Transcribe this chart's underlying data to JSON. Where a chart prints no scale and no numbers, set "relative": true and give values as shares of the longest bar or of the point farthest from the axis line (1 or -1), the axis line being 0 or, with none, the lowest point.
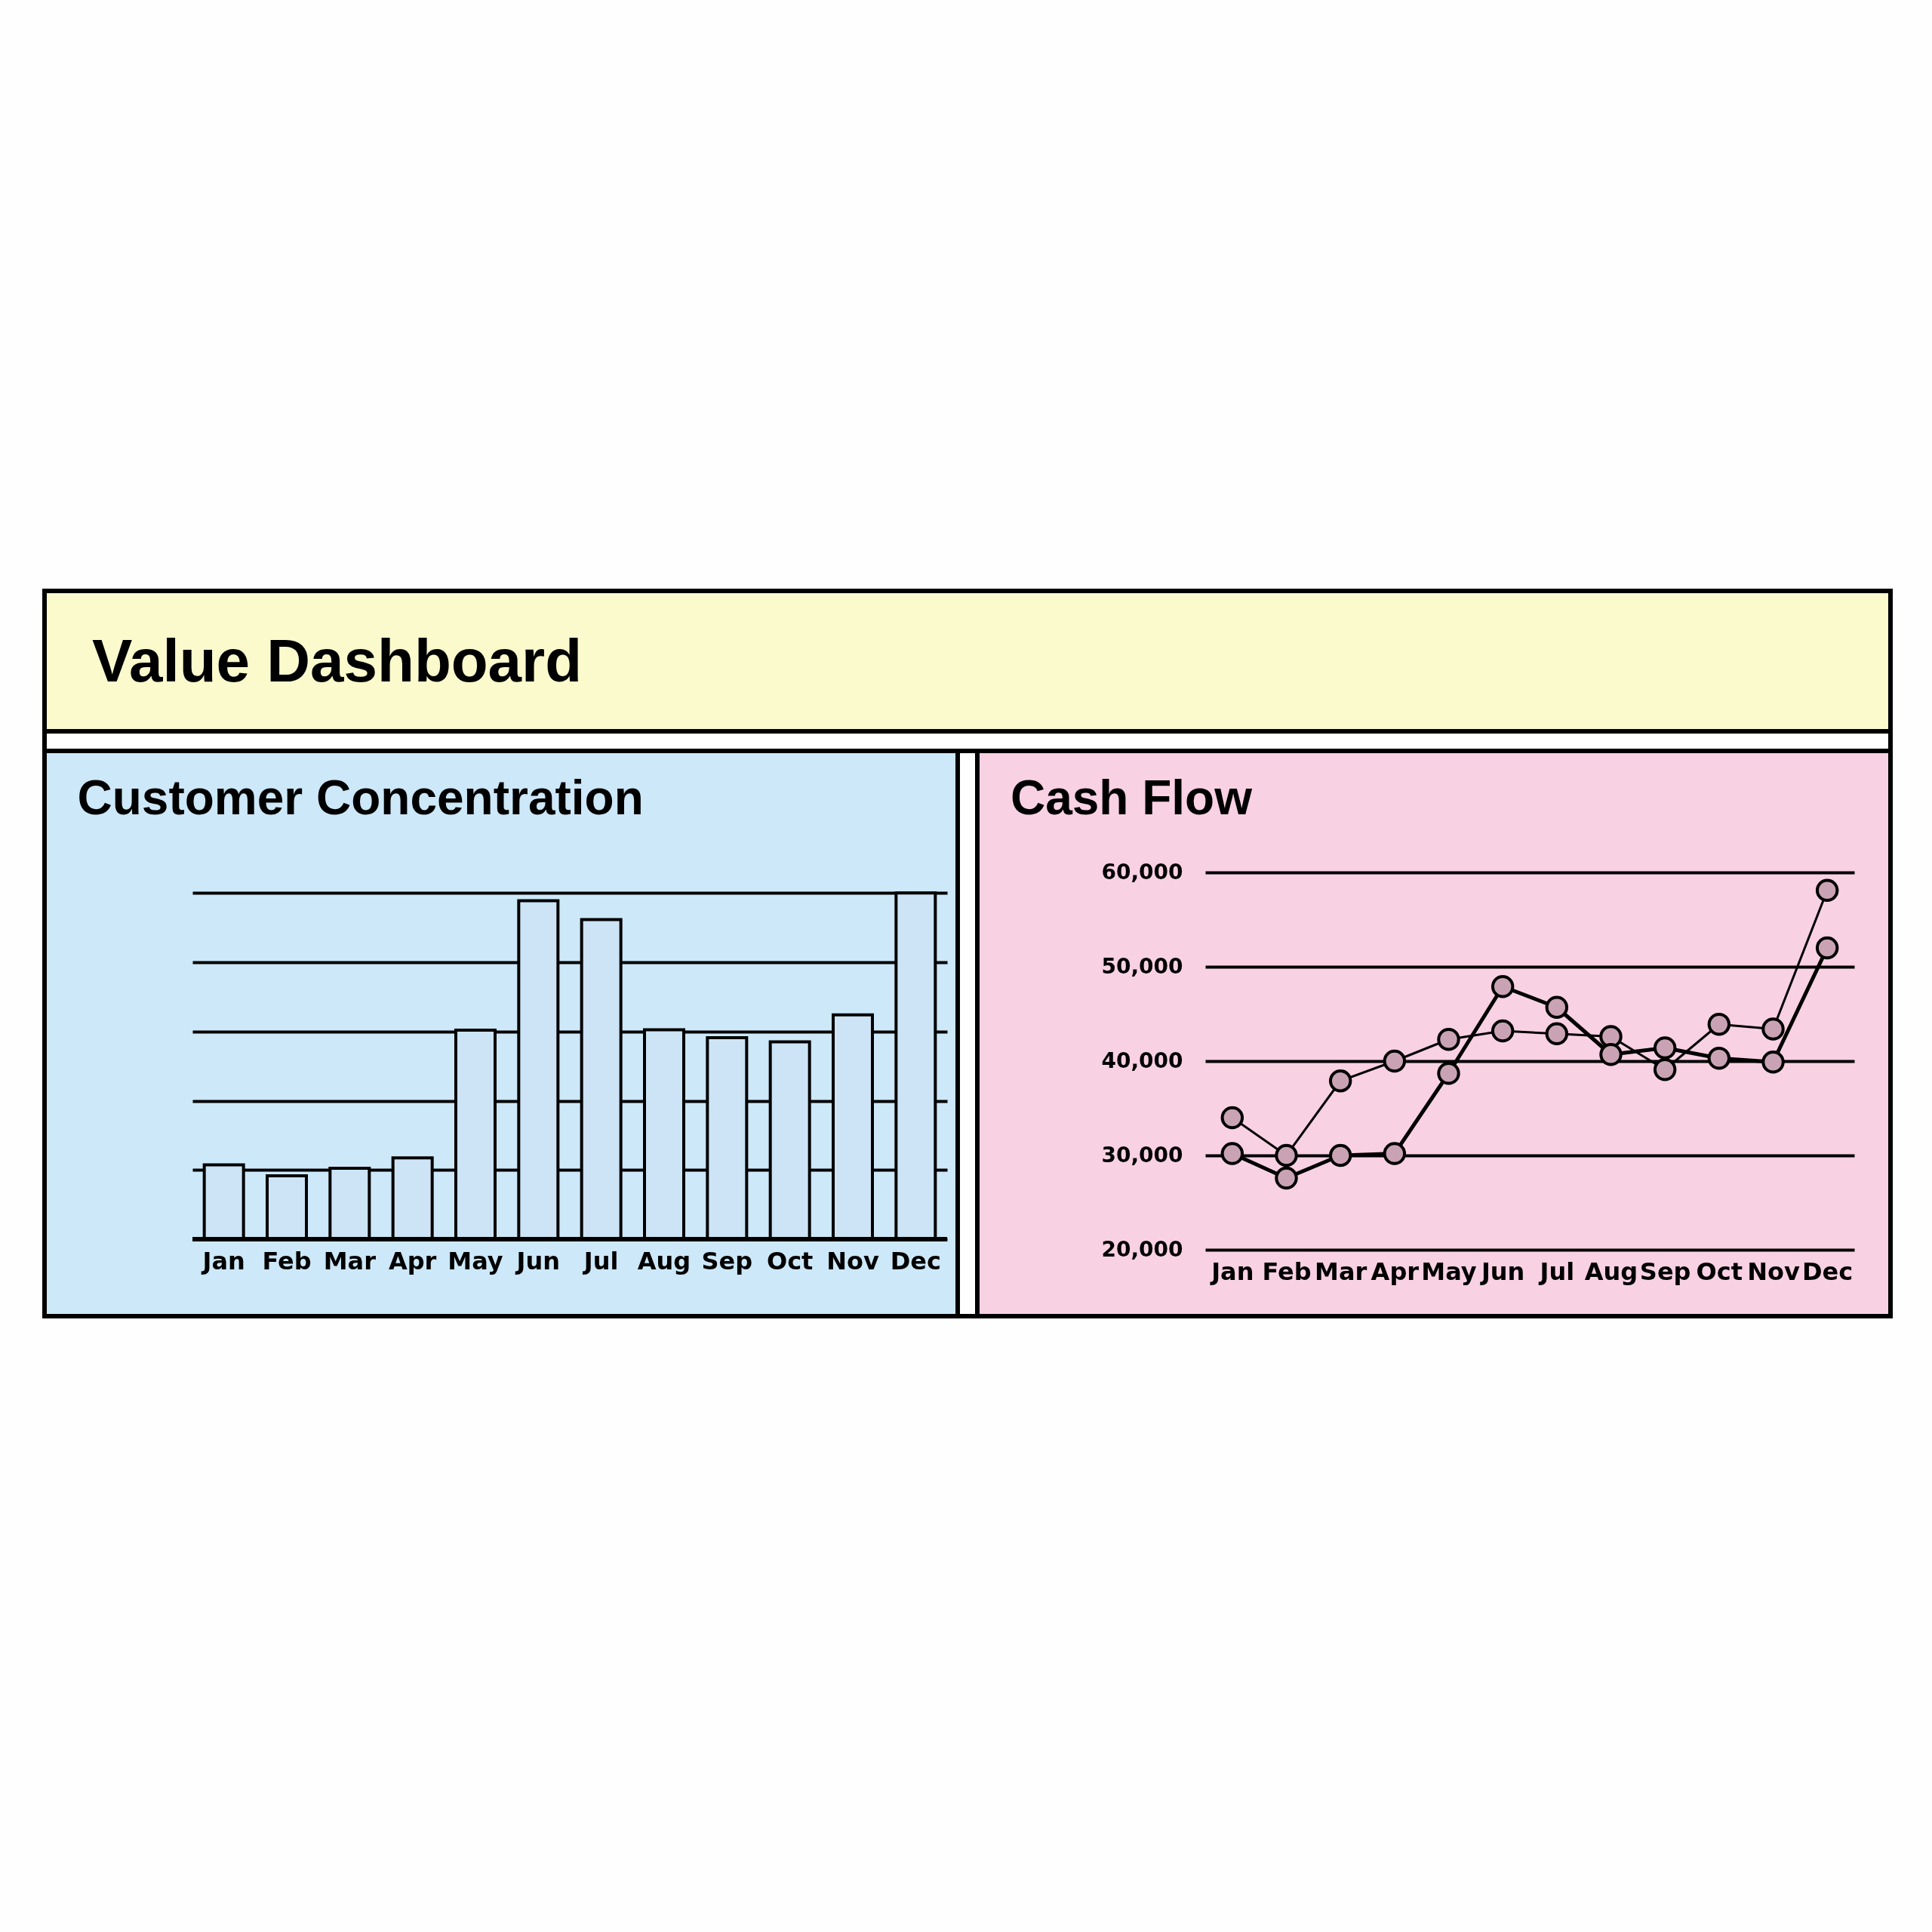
{
  "chart_data": [
    {
      "type": "other",
      "title": "Value Dashboard"
    },
    {
      "type": "bar",
      "title": "Customer Concentration",
      "relative": true,
      "grid": "y",
      "categories": [
        "Jan",
        "Feb",
        "Mar",
        "Apr",
        "May",
        "Jun",
        "Jul",
        "Aug",
        "Sep",
        "Oct",
        "Nov",
        "Dec"
      ],
      "values": [
        0.215,
        0.183,
        0.205,
        0.235,
        0.604,
        0.978,
        0.923,
        0.605,
        0.582,
        0.57,
        0.648,
        1
      ],
      "color": "#cce4f5"
    },
    {
      "type": "line",
      "title": "Cash Flow",
      "grid": "y",
      "marker": "circle",
      "line_style": "solid",
      "categories": [
        "Jan",
        "Feb",
        "Mar",
        "Apr",
        "May",
        "Jun",
        "Jul",
        "Aug",
        "Sep",
        "Oct",
        "Nov",
        "Dec"
      ],
      "series": [
        {
          "color": "#000000",
          "values": [
            34000,
            30000,
            37900,
            40000,
            42300,
            43200,
            42900,
            42600,
            39100,
            43900,
            43400,
            58100
          ]
        },
        {
          "color": "#000000",
          "values": [
            30200,
            27600,
            30000,
            30200,
            38700,
            47900,
            45700,
            40700,
            41400,
            40300,
            39900,
            52000
          ]
        }
      ],
      "ylim": [
        20000,
        60000
      ],
      "yticks": [
        {
          "value": 20000,
          "label": "20,000"
        },
        {
          "value": 30000,
          "label": "30,000"
        },
        {
          "value": 40000,
          "label": "40,000"
        },
        {
          "value": 50000,
          "label": "50,000"
        },
        {
          "value": 60000,
          "label": "60,000"
        }
      ]
    }
  ]
}
